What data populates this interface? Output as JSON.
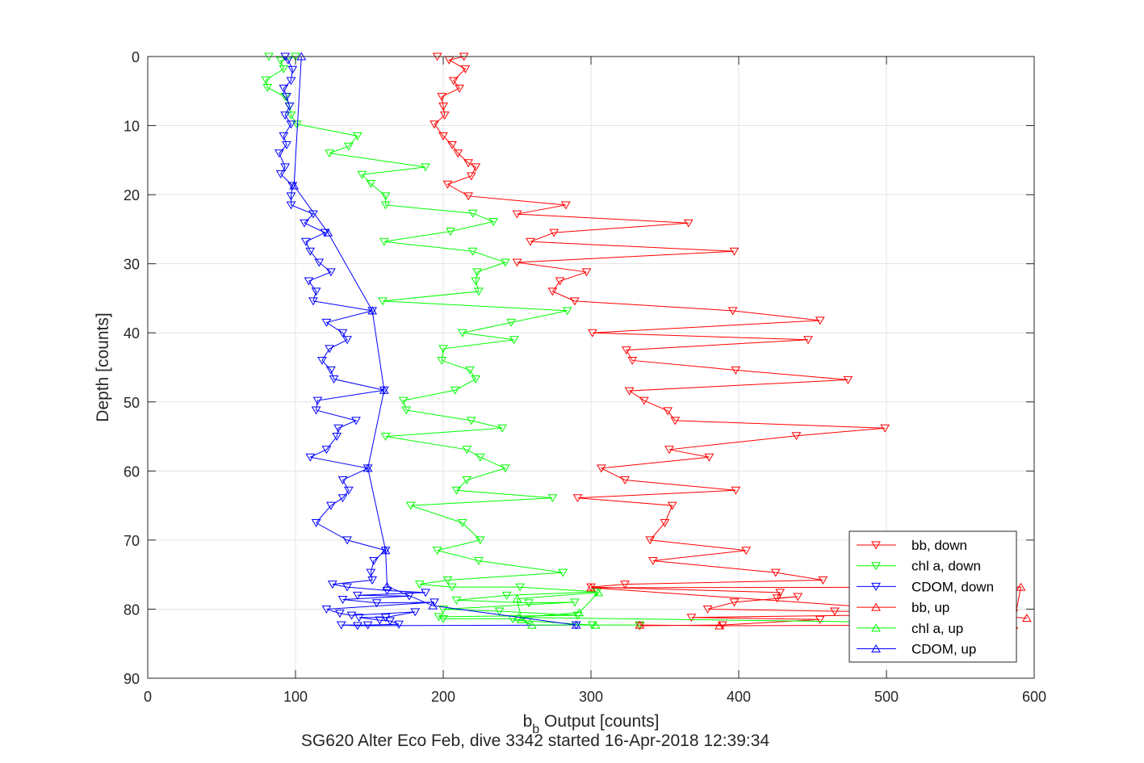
{
  "chart_data": {
    "type": "line",
    "title": "",
    "xlabel": {
      "main": "b",
      "sub": "b",
      "rest": " Output [counts]"
    },
    "ylabel": "Depth [counts]",
    "caption": "SG620 Alter Eco Feb, dive 3342 started 16-Apr-2018 12:39:34",
    "xlim": [
      0,
      600
    ],
    "ylim": [
      0,
      90
    ],
    "y_reversed": true,
    "xticks": [
      "0",
      "100",
      "200",
      "300",
      "400",
      "500",
      "600"
    ],
    "yticks": [
      "0",
      "10",
      "20",
      "30",
      "40",
      "50",
      "60",
      "70",
      "80",
      "90"
    ],
    "grid": true,
    "legend_position": "bottom-right",
    "series": [
      {
        "name": "bb, down",
        "color": "#ff0000",
        "marker": "triangle-down",
        "points": [
          [
            196,
            0
          ],
          [
            214,
            0
          ],
          [
            204,
            0.5
          ],
          [
            215,
            1.8
          ],
          [
            207,
            3.5
          ],
          [
            211,
            4.6
          ],
          [
            199,
            5.8
          ],
          [
            200,
            7.2
          ],
          [
            201,
            8.5
          ],
          [
            194,
            9.8
          ],
          [
            200,
            11.5
          ],
          [
            206,
            12.8
          ],
          [
            210,
            14
          ],
          [
            217,
            15.4
          ],
          [
            222,
            16
          ],
          [
            219,
            17.3
          ],
          [
            203,
            18.5
          ],
          [
            217,
            20.2
          ],
          [
            283,
            21.5
          ],
          [
            250,
            22.8
          ],
          [
            366,
            24.1
          ],
          [
            275,
            25.5
          ],
          [
            259,
            26.8
          ],
          [
            397,
            28.2
          ],
          [
            250,
            29.8
          ],
          [
            297,
            31.2
          ],
          [
            279,
            32.5
          ],
          [
            274,
            34
          ],
          [
            289,
            35.4
          ],
          [
            396,
            36.8
          ],
          [
            455,
            38.2
          ],
          [
            301,
            40
          ],
          [
            447,
            41
          ],
          [
            324,
            42.5
          ],
          [
            328,
            44
          ],
          [
            398,
            45.4
          ],
          [
            474,
            46.8
          ],
          [
            326,
            48.4
          ],
          [
            336,
            49.8
          ],
          [
            352,
            51.3
          ],
          [
            357,
            52.7
          ],
          [
            499,
            53.8
          ],
          [
            439,
            54.9
          ],
          [
            353,
            56.9
          ],
          [
            380,
            58
          ],
          [
            307,
            59.6
          ],
          [
            323,
            61.3
          ],
          [
            398,
            62.8
          ],
          [
            291,
            63.9
          ],
          [
            355,
            65
          ],
          [
            350,
            67.5
          ],
          [
            340,
            70
          ],
          [
            405,
            71.5
          ],
          [
            342,
            73
          ],
          [
            425,
            74.7
          ],
          [
            457,
            75.8
          ],
          [
            323,
            76.4
          ],
          [
            300,
            76.8
          ],
          [
            428,
            77.6
          ],
          [
            426,
            78.4
          ],
          [
            440,
            78.2
          ],
          [
            397,
            79
          ],
          [
            379,
            80
          ],
          [
            465,
            80.3
          ],
          [
            586,
            80.6
          ],
          [
            368,
            81.2
          ],
          [
            455,
            81.5
          ],
          [
            389,
            82.3
          ],
          [
            333,
            82.4
          ]
        ]
      },
      {
        "name": "chl a, down",
        "color": "#00ff00",
        "marker": "triangle-down",
        "points": [
          [
            82,
            0
          ],
          [
            100,
            0
          ],
          [
            90,
            0.6
          ],
          [
            92,
            1.8
          ],
          [
            80,
            3.4
          ],
          [
            81,
            4.5
          ],
          [
            93,
            5.8
          ],
          [
            96,
            7.2
          ],
          [
            97,
            8.5
          ],
          [
            101,
            9.8
          ],
          [
            142,
            11.5
          ],
          [
            136,
            13
          ],
          [
            123,
            14
          ],
          [
            188,
            16
          ],
          [
            145,
            17.1
          ],
          [
            151,
            18.4
          ],
          [
            161,
            20.2
          ],
          [
            161,
            21.5
          ],
          [
            220,
            22.7
          ],
          [
            234,
            23.9
          ],
          [
            205,
            25.3
          ],
          [
            160,
            26.8
          ],
          [
            220,
            28.2
          ],
          [
            242,
            29.8
          ],
          [
            223,
            31.2
          ],
          [
            222,
            32.5
          ],
          [
            224,
            34
          ],
          [
            159,
            35.4
          ],
          [
            284,
            36.8
          ],
          [
            246,
            38.5
          ],
          [
            213,
            40
          ],
          [
            248,
            41
          ],
          [
            200,
            42.3
          ],
          [
            199,
            44
          ],
          [
            218,
            45.4
          ],
          [
            222,
            46.7
          ],
          [
            208,
            48.3
          ],
          [
            173,
            49.8
          ],
          [
            175,
            51.2
          ],
          [
            219,
            52.7
          ],
          [
            240,
            53.8
          ],
          [
            161,
            55
          ],
          [
            216,
            56.9
          ],
          [
            225,
            58
          ],
          [
            242,
            59.6
          ],
          [
            216,
            61.3
          ],
          [
            209,
            62.8
          ],
          [
            274,
            63.9
          ],
          [
            178,
            65
          ],
          [
            213,
            67.5
          ],
          [
            225,
            70
          ],
          [
            196,
            71.5
          ],
          [
            224,
            73
          ],
          [
            281,
            74.7
          ],
          [
            203,
            75.8
          ],
          [
            184,
            76.4
          ],
          [
            206,
            76.8
          ],
          [
            252,
            76.8
          ],
          [
            304,
            77.5
          ],
          [
            243,
            78
          ],
          [
            209,
            78.7
          ],
          [
            258,
            79.1
          ],
          [
            289,
            79
          ],
          [
            200,
            80
          ],
          [
            238,
            80.3
          ],
          [
            291,
            80.9
          ],
          [
            197,
            81.1
          ],
          [
            200,
            81.4
          ],
          [
            247,
            81.4
          ],
          [
            257,
            81.7
          ],
          [
            301,
            82.3
          ],
          [
            333,
            82.3
          ]
        ]
      },
      {
        "name": "CDOM, down",
        "color": "#0000ff",
        "marker": "triangle-down",
        "points": [
          [
            93,
            0
          ],
          [
            95,
            0.5
          ],
          [
            98,
            1.9
          ],
          [
            97,
            3.5
          ],
          [
            92,
            4.6
          ],
          [
            94,
            5.8
          ],
          [
            96,
            7.2
          ],
          [
            93,
            8.5
          ],
          [
            97,
            9.8
          ],
          [
            92,
            11.5
          ],
          [
            94,
            12.8
          ],
          [
            89,
            14
          ],
          [
            93,
            16
          ],
          [
            90,
            17
          ],
          [
            98,
            18.7
          ],
          [
            97,
            20.2
          ],
          [
            97,
            21.5
          ],
          [
            112,
            22.8
          ],
          [
            106,
            24.1
          ],
          [
            120,
            25.5
          ],
          [
            107,
            26.8
          ],
          [
            110,
            28.2
          ],
          [
            116,
            29.8
          ],
          [
            124,
            31.2
          ],
          [
            109,
            32.5
          ],
          [
            114,
            34
          ],
          [
            112,
            35.4
          ],
          [
            152,
            36.8
          ],
          [
            121,
            38.5
          ],
          [
            132,
            40
          ],
          [
            135,
            41
          ],
          [
            123,
            42.3
          ],
          [
            118,
            44
          ],
          [
            124,
            45.4
          ],
          [
            126,
            46.7
          ],
          [
            160,
            48.3
          ],
          [
            115,
            49.8
          ],
          [
            114,
            51.2
          ],
          [
            141,
            52.7
          ],
          [
            129,
            53.8
          ],
          [
            128,
            55
          ],
          [
            121,
            56.9
          ],
          [
            110,
            58
          ],
          [
            149,
            59.6
          ],
          [
            132,
            61.3
          ],
          [
            136,
            62.8
          ],
          [
            132,
            63.9
          ],
          [
            124,
            65
          ],
          [
            114,
            67.5
          ],
          [
            135,
            70
          ],
          [
            161,
            71.5
          ],
          [
            153,
            73
          ],
          [
            151,
            74.7
          ],
          [
            152,
            75.8
          ],
          [
            125,
            76.4
          ],
          [
            135,
            76.8
          ],
          [
            162,
            77.3
          ],
          [
            188,
            77.6
          ],
          [
            142,
            78
          ],
          [
            177,
            78.1
          ],
          [
            132,
            78.6
          ],
          [
            155,
            79.1
          ],
          [
            194,
            79
          ],
          [
            121,
            80
          ],
          [
            130,
            80.6
          ],
          [
            138,
            80.9
          ],
          [
            181,
            80.4
          ],
          [
            161,
            81.2
          ],
          [
            143,
            81.2
          ],
          [
            157,
            81.6
          ],
          [
            164,
            81.7
          ],
          [
            170,
            82.2
          ],
          [
            149,
            82.3
          ],
          [
            131,
            82.3
          ],
          [
            142,
            82.4
          ],
          [
            290,
            82.3
          ]
        ]
      },
      {
        "name": "bb, up",
        "color": "#ff0000",
        "marker": "triangle-up",
        "points": [
          [
            333,
            82.3
          ],
          [
            387,
            82.4
          ],
          [
            586,
            82.3
          ],
          [
            591,
            76.8
          ],
          [
            300,
            76.9
          ],
          [
            595,
            81.3
          ]
        ]
      },
      {
        "name": "chl a, up",
        "color": "#00ff00",
        "marker": "triangle-up",
        "points": [
          [
            303,
            82.3
          ],
          [
            260,
            82.3
          ],
          [
            253,
            81.5
          ],
          [
            250,
            78.5
          ],
          [
            305,
            77.6
          ],
          [
            292,
            80.5
          ],
          [
            251,
            81.2
          ],
          [
            540,
            82
          ]
        ]
      },
      {
        "name": "CDOM, up",
        "color": "#0000ff",
        "marker": "triangle-up",
        "points": [
          [
            104,
            0
          ],
          [
            99,
            18.7
          ],
          [
            122,
            25.5
          ],
          [
            152,
            36.8
          ],
          [
            160,
            48.3
          ],
          [
            149,
            59.6
          ],
          [
            161,
            71.5
          ],
          [
            162,
            76.7
          ],
          [
            193,
            79.5
          ],
          [
            290,
            82.3
          ]
        ]
      }
    ]
  },
  "legend": {
    "entries": [
      "bb, down",
      "chl a, down",
      "CDOM, down",
      "bb, up",
      "chl a, up",
      "CDOM, up"
    ]
  }
}
